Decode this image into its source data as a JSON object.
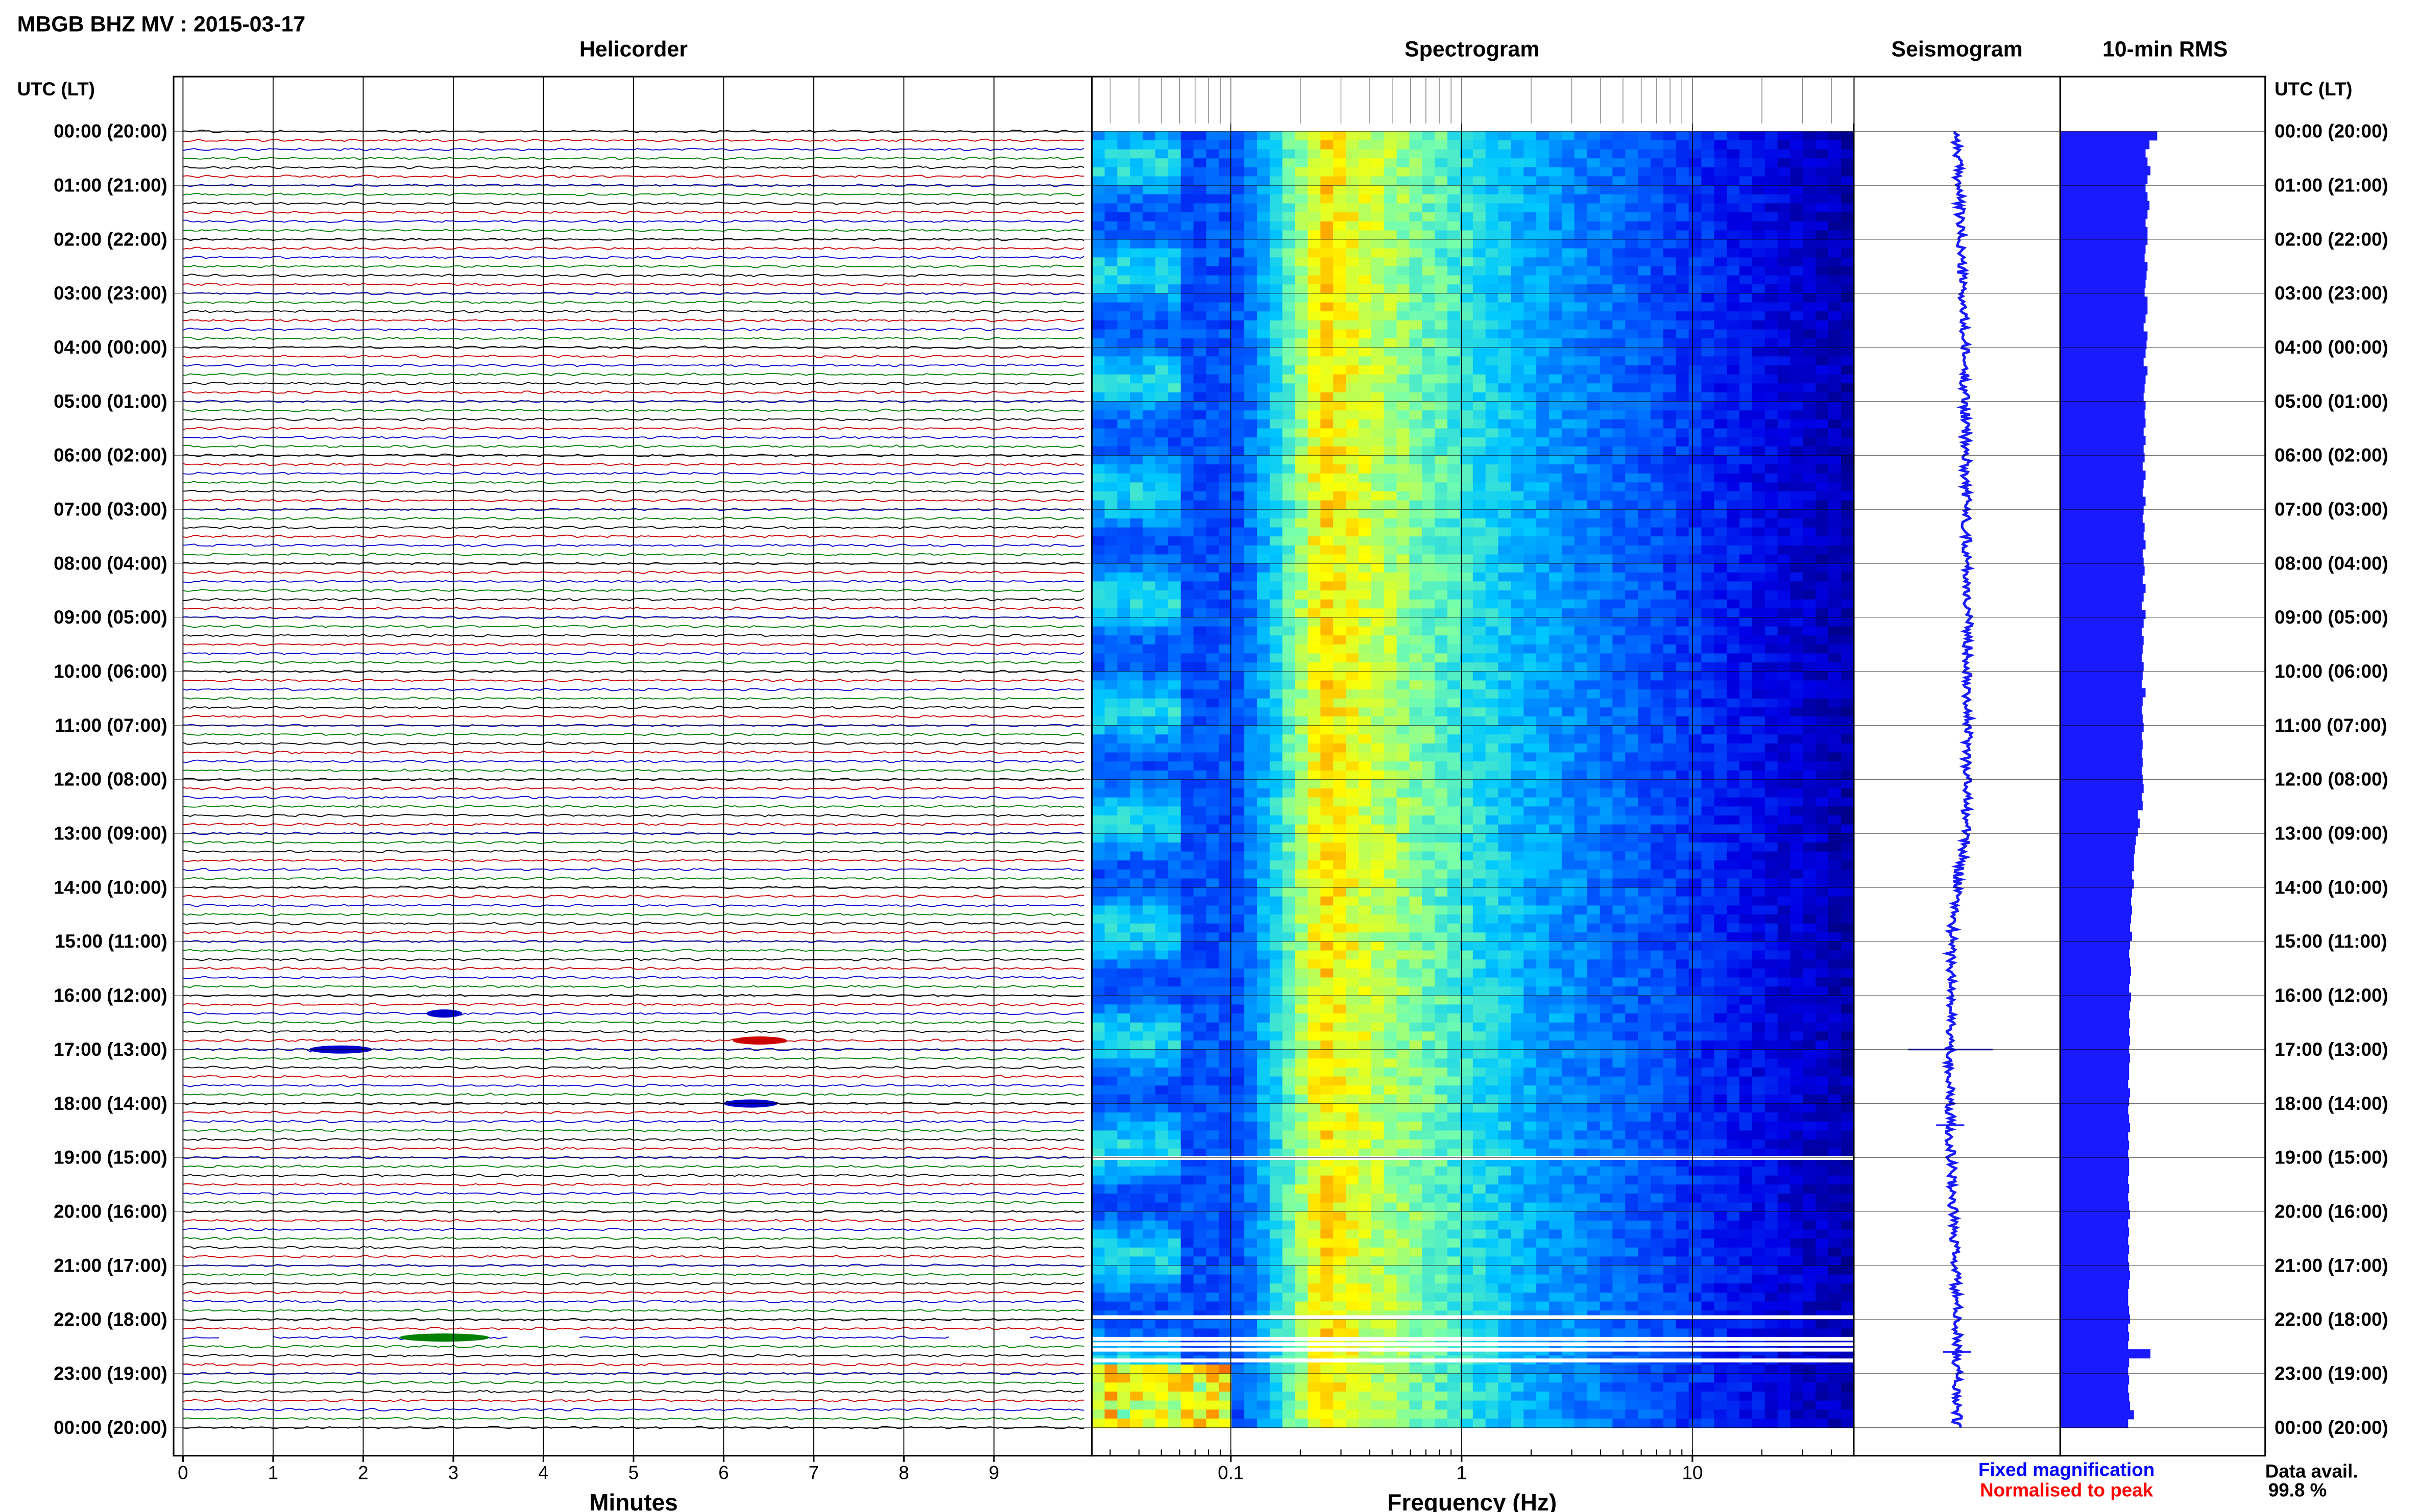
{
  "header": {
    "station_title": "MBGB BHZ MV : 2015-03-17",
    "utc_lt_left": "UTC (LT)",
    "utc_lt_right": "UTC (LT)"
  },
  "panels": {
    "helicorder": "Helicorder",
    "spectrogram": "Spectrogram",
    "seismogram": "Seismogram",
    "rms": "10-min RMS"
  },
  "time_labels": [
    "00:00 (20:00)",
    "01:00 (21:00)",
    "02:00 (22:00)",
    "03:00 (23:00)",
    "04:00 (00:00)",
    "05:00 (01:00)",
    "06:00 (02:00)",
    "07:00 (03:00)",
    "08:00 (04:00)",
    "09:00 (05:00)",
    "10:00 (06:00)",
    "11:00 (07:00)",
    "12:00 (08:00)",
    "13:00 (09:00)",
    "14:00 (10:00)",
    "15:00 (11:00)",
    "16:00 (12:00)",
    "17:00 (13:00)",
    "18:00 (14:00)",
    "19:00 (15:00)",
    "20:00 (16:00)",
    "21:00 (17:00)",
    "22:00 (18:00)",
    "23:00 (19:00)",
    "00:00 (20:00)"
  ],
  "footer": {
    "minutes_label": "Minutes",
    "frequency_label": "Frequency (Hz)",
    "fixed_magnification": "Fixed magnification",
    "normalised_to_peak": "Normalised to peak",
    "data_avail_label": "Data avail.",
    "data_avail_value": "99.8 %"
  },
  "colors": {
    "trace_colors": [
      "#000000",
      "#cc0000",
      "#0000cc",
      "#008000"
    ],
    "seismogram": "#1a1aff",
    "rms_bar": "#1a1aff",
    "fixed_magnification_text": "#0000ff",
    "normalised_text": "#ff0000",
    "spectrogram_low": "#00008b",
    "spectrogram_high": "#ffff00"
  },
  "chart_data": [
    {
      "type": "line",
      "name": "helicorder",
      "title": "Helicorder",
      "xlabel": "Minutes",
      "xlim": [
        0,
        10
      ],
      "x_ticks": [
        0,
        1,
        2,
        3,
        4,
        5,
        6,
        7,
        8,
        9
      ],
      "rows_per_hour": 6,
      "events": [
        {
          "hour": 16,
          "row": 2,
          "minute": 2.7,
          "duration": 0.4,
          "color_index": 2
        },
        {
          "hour": 16,
          "row": 5,
          "minute": 6.1,
          "duration": 0.6,
          "color_index": 1
        },
        {
          "hour": 17,
          "row": 0,
          "minute": 1.4,
          "duration": 0.7,
          "color_index": 2
        },
        {
          "hour": 18,
          "row": 0,
          "minute": 6.0,
          "duration": 0.6,
          "color_index": 2
        },
        {
          "hour": 22,
          "row": 2,
          "minute": 2.4,
          "duration": 1.0,
          "color_index": 3
        }
      ],
      "data_gaps": [
        {
          "hour": 22,
          "row": 2,
          "minute": 0.4,
          "duration": 0.6
        },
        {
          "hour": 22,
          "row": 2,
          "minute": 3.6,
          "duration": 0.8
        },
        {
          "hour": 22,
          "row": 2,
          "minute": 8.5,
          "duration": 0.9
        }
      ]
    },
    {
      "type": "heatmap",
      "name": "spectrogram",
      "title": "Spectrogram",
      "xlabel": "Frequency (Hz)",
      "x_scale": "log",
      "xlim": [
        0.025,
        50
      ],
      "x_ticks": [
        0.1,
        1,
        10
      ],
      "peak_frequency_hz": 0.25,
      "data_gaps_hour": [
        19.0,
        21.95,
        22.35,
        22.45,
        22.55,
        22.75
      ]
    },
    {
      "type": "line",
      "name": "seismogram",
      "title": "Seismogram",
      "trend": [
        {
          "hour": 0,
          "offset": 0.0
        },
        {
          "hour": 4,
          "offset": 0.4
        },
        {
          "hour": 10,
          "offset": 0.6
        },
        {
          "hour": 13,
          "offset": 0.5
        },
        {
          "hour": 14,
          "offset": 0.0
        },
        {
          "hour": 15,
          "offset": -0.3
        },
        {
          "hour": 16,
          "offset": -0.3
        },
        {
          "hour": 18,
          "offset": -0.4
        },
        {
          "hour": 20,
          "offset": -0.2
        },
        {
          "hour": 22,
          "offset": 0.0
        },
        {
          "hour": 24,
          "offset": 0.0
        }
      ],
      "spikes": [
        {
          "hour": 17.0,
          "amplitude": 0.9
        },
        {
          "hour": 18.4,
          "amplitude": 0.3
        },
        {
          "hour": 22.6,
          "amplitude": 0.3
        }
      ]
    },
    {
      "type": "bar",
      "name": "rms",
      "title": "10-min RMS",
      "values": [
        1.0,
        0.92,
        0.88,
        0.9,
        0.93,
        0.9,
        0.88,
        0.9,
        0.92,
        0.9,
        0.88,
        0.9,
        0.9,
        0.88,
        0.87,
        0.9,
        0.89,
        0.88,
        0.87,
        0.9,
        0.9,
        0.88,
        0.86,
        0.9,
        0.89,
        0.88,
        0.86,
        0.9,
        0.88,
        0.87,
        0.86,
        0.88,
        0.87,
        0.88,
        0.86,
        0.88,
        0.86,
        0.87,
        0.85,
        0.88,
        0.86,
        0.85,
        0.88,
        0.86,
        0.85,
        0.87,
        0.86,
        0.88,
        0.85,
        0.86,
        0.87,
        0.85,
        0.88,
        0.86,
        0.84,
        0.88,
        0.86,
        0.84,
        0.86,
        0.85,
        0.84,
        0.86,
        0.85,
        0.84,
        0.88,
        0.85,
        0.84,
        0.85,
        0.86,
        0.84,
        0.85,
        0.84,
        0.85,
        0.84,
        0.85,
        0.86,
        0.84,
        0.85,
        0.8,
        0.82,
        0.8,
        0.78,
        0.77,
        0.76,
        0.76,
        0.74,
        0.76,
        0.74,
        0.73,
        0.74,
        0.73,
        0.72,
        0.74,
        0.72,
        0.71,
        0.72,
        0.73,
        0.72,
        0.71,
        0.73,
        0.72,
        0.71,
        0.72,
        0.71,
        0.72,
        0.71,
        0.72,
        0.71,
        0.71,
        0.7,
        0.72,
        0.71,
        0.7,
        0.71,
        0.72,
        0.7,
        0.71,
        0.7,
        0.71,
        0.71,
        0.7,
        0.71,
        0.7,
        0.71,
        0.72,
        0.7,
        0.71,
        0.7,
        0.71,
        0.7,
        0.71,
        0.72,
        0.71,
        0.7,
        0.7,
        0.71,
        0.72,
        0.7,
        0.71,
        0.7,
        0.93,
        0.71,
        0.7,
        0.71,
        0.7,
        0.71,
        0.72,
        0.76,
        0.7
      ]
    }
  ]
}
